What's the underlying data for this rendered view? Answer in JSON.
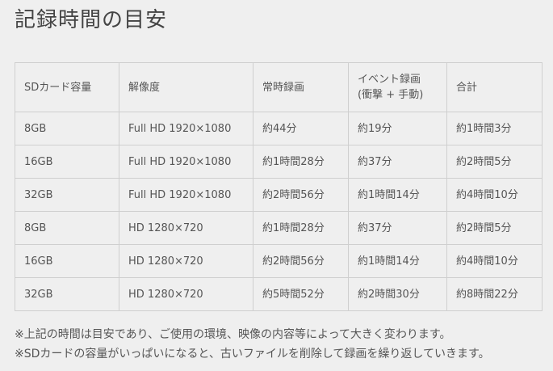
{
  "title": "記録時間の目安",
  "table": {
    "headers": [
      "SDカード容量",
      "解像度",
      "常時録画",
      "イベント録画\n(衝撃 + 手動)",
      "合計"
    ],
    "rows": [
      [
        "8GB",
        "Full HD 1920×1080",
        "約44分",
        "約19分",
        "約1時間3分"
      ],
      [
        "16GB",
        "Full HD 1920×1080",
        "約1時間28分",
        "約37分",
        "約2時間5分"
      ],
      [
        "32GB",
        "Full HD 1920×1080",
        "約2時間56分",
        "約1時間14分",
        "約4時間10分"
      ],
      [
        "8GB",
        "HD 1280×720",
        "約1時間28分",
        "約37分",
        "約2時間5分"
      ],
      [
        "16GB",
        "HD 1280×720",
        "約2時間56分",
        "約1時間14分",
        "約4時間10分"
      ],
      [
        "32GB",
        "HD 1280×720",
        "約5時間52分",
        "約2時間30分",
        "約8時間22分"
      ]
    ]
  },
  "notes": [
    "※上記の時間は目安であり、ご使用の環境、映像の内容等によって大きく変わります。",
    "※SDカードの容量がいっぱいになると、古いファイルを削除して録画を繰り返していきます。"
  ]
}
